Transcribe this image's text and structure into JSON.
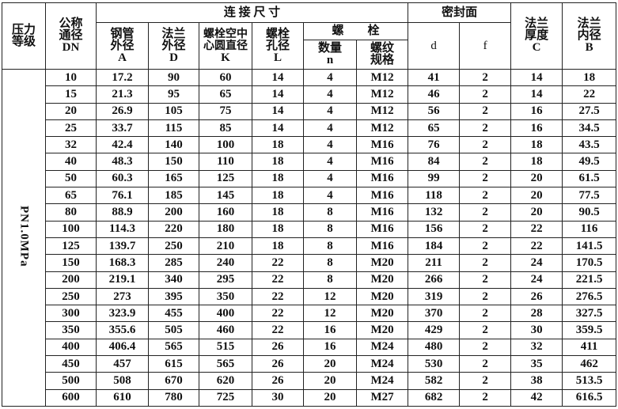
{
  "headers": {
    "pressure_class": "压力等级",
    "nominal_size": "公称通径",
    "nominal_size_sym": "DN",
    "connection_dims": "连 接 尺 寸",
    "pipe_od": "钢管外径",
    "pipe_od_sym": "A",
    "flange_od": "法兰外径",
    "flange_od_sym": "D",
    "bolt_circle": "螺栓空中心圆直径",
    "bolt_circle_sym": "K",
    "bolt_hole": "螺栓孔径",
    "bolt_hole_sym": "L",
    "bolt": "螺　　栓",
    "bolt_qty": "数量",
    "bolt_qty_sym": "n",
    "thread_spec": "螺纹规格",
    "sealing_face": "密封面",
    "seal_d": "d",
    "seal_f": "f",
    "flange_thickness": "法兰厚度",
    "flange_thickness_sym": "C",
    "flange_id": "法兰内径",
    "flange_id_sym": "B"
  },
  "pressure_class_value": "PN1.0MPa",
  "rows": [
    [
      "10",
      "17.2",
      "90",
      "60",
      "14",
      "4",
      "M12",
      "41",
      "2",
      "14",
      "18"
    ],
    [
      "15",
      "21.3",
      "95",
      "65",
      "14",
      "4",
      "M12",
      "46",
      "2",
      "14",
      "22"
    ],
    [
      "20",
      "26.9",
      "105",
      "75",
      "14",
      "4",
      "M12",
      "56",
      "2",
      "16",
      "27.5"
    ],
    [
      "25",
      "33.7",
      "115",
      "85",
      "14",
      "4",
      "M12",
      "65",
      "2",
      "16",
      "34.5"
    ],
    [
      "32",
      "42.4",
      "140",
      "100",
      "18",
      "4",
      "M16",
      "76",
      "2",
      "18",
      "43.5"
    ],
    [
      "40",
      "48.3",
      "150",
      "110",
      "18",
      "4",
      "M16",
      "84",
      "2",
      "18",
      "49.5"
    ],
    [
      "50",
      "60.3",
      "165",
      "125",
      "18",
      "4",
      "M16",
      "99",
      "2",
      "20",
      "61.5"
    ],
    [
      "65",
      "76.1",
      "185",
      "145",
      "18",
      "4",
      "M16",
      "118",
      "2",
      "20",
      "77.5"
    ],
    [
      "80",
      "88.9",
      "200",
      "160",
      "18",
      "8",
      "M16",
      "132",
      "2",
      "20",
      "90.5"
    ],
    [
      "100",
      "114.3",
      "220",
      "180",
      "18",
      "8",
      "M16",
      "156",
      "2",
      "22",
      "116"
    ],
    [
      "125",
      "139.7",
      "250",
      "210",
      "18",
      "8",
      "M16",
      "184",
      "2",
      "22",
      "141.5"
    ],
    [
      "150",
      "168.3",
      "285",
      "240",
      "22",
      "8",
      "M20",
      "211",
      "2",
      "24",
      "170.5"
    ],
    [
      "200",
      "219.1",
      "340",
      "295",
      "22",
      "8",
      "M20",
      "266",
      "2",
      "24",
      "221.5"
    ],
    [
      "250",
      "273",
      "395",
      "350",
      "22",
      "12",
      "M20",
      "319",
      "2",
      "26",
      "276.5"
    ],
    [
      "300",
      "323.9",
      "455",
      "400",
      "22",
      "12",
      "M20",
      "370",
      "2",
      "28",
      "327.5"
    ],
    [
      "350",
      "355.6",
      "505",
      "460",
      "22",
      "16",
      "M20",
      "429",
      "2",
      "30",
      "359.5"
    ],
    [
      "400",
      "406.4",
      "565",
      "515",
      "26",
      "16",
      "M24",
      "480",
      "2",
      "32",
      "411"
    ],
    [
      "450",
      "457",
      "615",
      "565",
      "26",
      "20",
      "M24",
      "530",
      "2",
      "35",
      "462"
    ],
    [
      "500",
      "508",
      "670",
      "620",
      "26",
      "20",
      "M24",
      "582",
      "2",
      "38",
      "513.5"
    ],
    [
      "600",
      "610",
      "780",
      "725",
      "30",
      "20",
      "M27",
      "682",
      "2",
      "42",
      "616.5"
    ]
  ]
}
